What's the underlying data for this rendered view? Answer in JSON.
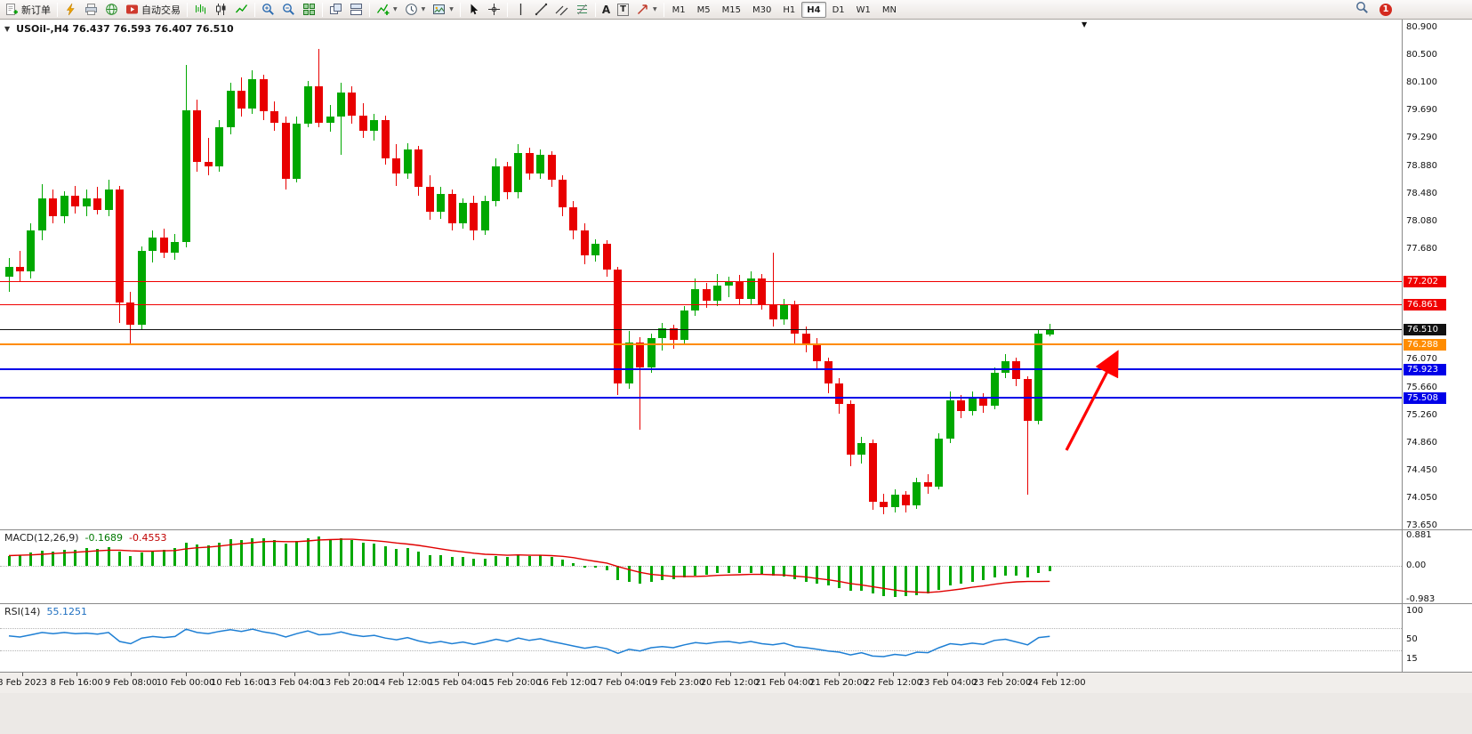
{
  "toolbar": {
    "new_order": "新订单",
    "autotrade": "自动交易",
    "timeframes": [
      "M1",
      "M5",
      "M15",
      "M30",
      "H1",
      "H4",
      "D1",
      "W1",
      "MN"
    ],
    "active_timeframe": "H4",
    "notification_count": "1"
  },
  "chart": {
    "title": "USOil-,H4 76.437 76.593 76.407 76.510"
  },
  "chart_data": {
    "type": "candlestick",
    "symbol": "USOil-",
    "period": "H4",
    "current_ohlc": {
      "open": 76.437,
      "high": 76.593,
      "low": 76.407,
      "close": 76.51
    },
    "price_axis_ticks": [
      "80.900",
      "80.500",
      "80.100",
      "79.690",
      "79.290",
      "78.880",
      "78.480",
      "78.080",
      "77.680",
      "76.070",
      "75.660",
      "75.260",
      "74.860",
      "74.450",
      "74.050",
      "73.650"
    ],
    "horizontal_lines": [
      {
        "price": 77.202,
        "label": "77.202",
        "color": "#F00000",
        "width": 1
      },
      {
        "price": 76.861,
        "label": "76.861",
        "color": "#F00000",
        "width": 1
      },
      {
        "price": 76.51,
        "label": "76.510",
        "color": "#111111",
        "width": 1
      },
      {
        "price": 76.288,
        "label": "76.288",
        "color": "#FF8C00",
        "width": 2
      },
      {
        "price": 75.923,
        "label": "75.923",
        "color": "#0000E8",
        "width": 2
      },
      {
        "price": 75.508,
        "label": "75.508",
        "color": "#0000E8",
        "width": 2
      }
    ],
    "time_labels": [
      "8 Feb 2023",
      "8 Feb 16:00",
      "9 Feb 08:00",
      "10 Feb 00:00",
      "10 Feb 16:00",
      "13 Feb 04:00",
      "13 Feb 20:00",
      "14 Feb 12:00",
      "15 Feb 04:00",
      "15 Feb 20:00",
      "16 Feb 12:00",
      "17 Feb 04:00",
      "19 Feb 23:00",
      "20 Feb 12:00",
      "21 Feb 04:00",
      "21 Feb 20:00",
      "22 Feb 12:00",
      "23 Feb 04:00",
      "23 Feb 20:00",
      "24 Feb 12:00"
    ],
    "candles": [
      [
        77.28,
        77.55,
        77.05,
        77.42
      ],
      [
        77.42,
        77.65,
        77.2,
        77.35
      ],
      [
        77.35,
        78.05,
        77.25,
        77.95
      ],
      [
        77.95,
        78.62,
        77.8,
        78.42
      ],
      [
        78.42,
        78.55,
        78.05,
        78.15
      ],
      [
        78.15,
        78.52,
        78.05,
        78.45
      ],
      [
        78.45,
        78.6,
        78.2,
        78.3
      ],
      [
        78.3,
        78.55,
        78.15,
        78.42
      ],
      [
        78.42,
        78.58,
        78.18,
        78.25
      ],
      [
        78.25,
        78.68,
        78.15,
        78.55
      ],
      [
        78.55,
        78.6,
        76.6,
        76.9
      ],
      [
        76.9,
        77.05,
        76.28,
        76.58
      ],
      [
        76.58,
        77.72,
        76.5,
        77.65
      ],
      [
        77.65,
        77.95,
        77.48,
        77.85
      ],
      [
        77.85,
        77.98,
        77.55,
        77.62
      ],
      [
        77.62,
        77.9,
        77.52,
        77.78
      ],
      [
        77.78,
        80.35,
        77.7,
        79.7
      ],
      [
        79.7,
        79.85,
        78.8,
        78.95
      ],
      [
        78.95,
        79.3,
        78.75,
        78.88
      ],
      [
        78.88,
        79.55,
        78.8,
        79.45
      ],
      [
        79.45,
        80.1,
        79.35,
        79.98
      ],
      [
        79.98,
        80.18,
        79.6,
        79.72
      ],
      [
        79.72,
        80.28,
        79.65,
        80.15
      ],
      [
        80.15,
        80.22,
        79.55,
        79.68
      ],
      [
        79.68,
        79.82,
        79.4,
        79.52
      ],
      [
        79.52,
        79.6,
        78.55,
        78.7
      ],
      [
        78.7,
        79.6,
        78.65,
        79.5
      ],
      [
        79.5,
        80.12,
        79.45,
        80.05
      ],
      [
        80.05,
        80.59,
        79.45,
        79.52
      ],
      [
        79.52,
        79.78,
        79.38,
        79.6
      ],
      [
        79.6,
        80.1,
        79.05,
        79.95
      ],
      [
        79.95,
        80.05,
        79.5,
        79.62
      ],
      [
        79.62,
        79.8,
        79.3,
        79.4
      ],
      [
        79.4,
        79.65,
        79.25,
        79.55
      ],
      [
        79.55,
        79.62,
        78.9,
        79.0
      ],
      [
        79.0,
        79.2,
        78.6,
        78.78
      ],
      [
        78.78,
        79.22,
        78.7,
        79.12
      ],
      [
        79.12,
        79.18,
        78.45,
        78.58
      ],
      [
        78.58,
        78.75,
        78.1,
        78.22
      ],
      [
        78.22,
        78.58,
        78.12,
        78.48
      ],
      [
        78.48,
        78.55,
        77.95,
        78.05
      ],
      [
        78.05,
        78.42,
        77.98,
        78.35
      ],
      [
        78.35,
        78.45,
        77.8,
        77.95
      ],
      [
        77.95,
        78.45,
        77.88,
        78.38
      ],
      [
        78.38,
        79.0,
        78.3,
        78.88
      ],
      [
        78.88,
        78.95,
        78.4,
        78.5
      ],
      [
        78.5,
        79.2,
        78.42,
        79.08
      ],
      [
        79.08,
        79.15,
        78.68,
        78.78
      ],
      [
        78.78,
        79.12,
        78.7,
        79.05
      ],
      [
        79.05,
        79.1,
        78.58,
        78.68
      ],
      [
        78.68,
        78.75,
        78.15,
        78.28
      ],
      [
        78.28,
        78.38,
        77.82,
        77.95
      ],
      [
        77.95,
        78.05,
        77.45,
        77.58
      ],
      [
        77.58,
        77.82,
        77.5,
        77.75
      ],
      [
        77.75,
        77.8,
        77.28,
        77.38
      ],
      [
        77.38,
        77.42,
        75.55,
        75.72
      ],
      [
        75.72,
        76.48,
        75.65,
        76.32
      ],
      [
        76.32,
        76.4,
        75.05,
        75.95
      ],
      [
        75.95,
        76.45,
        75.88,
        76.38
      ],
      [
        76.38,
        76.6,
        76.2,
        76.52
      ],
      [
        76.52,
        76.58,
        76.22,
        76.35
      ],
      [
        76.35,
        76.85,
        76.3,
        76.78
      ],
      [
        76.78,
        77.25,
        76.7,
        77.1
      ],
      [
        77.1,
        77.18,
        76.82,
        76.92
      ],
      [
        76.92,
        77.32,
        76.85,
        77.15
      ],
      [
        77.15,
        77.28,
        76.98,
        77.2
      ],
      [
        77.2,
        77.3,
        76.88,
        76.95
      ],
      [
        76.95,
        77.35,
        76.88,
        77.25
      ],
      [
        77.25,
        77.32,
        76.8,
        76.88
      ],
      [
        76.88,
        77.62,
        76.55,
        76.65
      ],
      [
        76.65,
        76.95,
        76.58,
        76.88
      ],
      [
        76.88,
        76.92,
        76.3,
        76.45
      ],
      [
        76.45,
        76.55,
        76.18,
        76.3
      ],
      [
        76.3,
        76.38,
        75.92,
        76.05
      ],
      [
        76.05,
        76.1,
        75.58,
        75.72
      ],
      [
        75.72,
        75.8,
        75.28,
        75.42
      ],
      [
        75.42,
        75.48,
        74.52,
        74.68
      ],
      [
        74.68,
        74.95,
        74.55,
        74.85
      ],
      [
        74.85,
        74.9,
        73.88,
        74.0
      ],
      [
        74.0,
        74.12,
        73.82,
        73.92
      ],
      [
        73.92,
        74.18,
        73.85,
        74.1
      ],
      [
        74.1,
        74.15,
        73.84,
        73.95
      ],
      [
        73.95,
        74.35,
        73.9,
        74.28
      ],
      [
        74.28,
        74.4,
        74.12,
        74.22
      ],
      [
        74.22,
        75.0,
        74.18,
        74.92
      ],
      [
        74.92,
        75.6,
        74.85,
        75.48
      ],
      [
        75.48,
        75.55,
        75.22,
        75.32
      ],
      [
        75.32,
        75.6,
        75.25,
        75.52
      ],
      [
        75.52,
        75.58,
        75.3,
        75.4
      ],
      [
        75.4,
        75.95,
        75.35,
        75.88
      ],
      [
        75.88,
        76.15,
        75.8,
        76.05
      ],
      [
        76.05,
        76.1,
        75.68,
        75.78
      ],
      [
        75.78,
        75.82,
        74.1,
        75.18
      ],
      [
        75.18,
        76.5,
        75.12,
        76.44
      ],
      [
        76.437,
        76.593,
        76.407,
        76.51
      ]
    ],
    "indicators": {
      "macd": {
        "name": "MACD(12,26,9)",
        "value_main": "-0.1689",
        "value_signal": "-0.4553",
        "axis_ticks": [
          "0.881",
          "0.00",
          "-0.983"
        ],
        "histogram": [
          0.28,
          0.32,
          0.38,
          0.45,
          0.42,
          0.48,
          0.46,
          0.52,
          0.5,
          0.55,
          0.42,
          0.3,
          0.38,
          0.45,
          0.48,
          0.52,
          0.68,
          0.62,
          0.6,
          0.68,
          0.78,
          0.75,
          0.82,
          0.8,
          0.76,
          0.65,
          0.72,
          0.82,
          0.85,
          0.78,
          0.82,
          0.76,
          0.68,
          0.66,
          0.58,
          0.5,
          0.52,
          0.42,
          0.32,
          0.32,
          0.25,
          0.26,
          0.2,
          0.22,
          0.3,
          0.26,
          0.34,
          0.3,
          0.32,
          0.26,
          0.18,
          0.08,
          -0.04,
          -0.06,
          -0.14,
          -0.42,
          -0.46,
          -0.52,
          -0.48,
          -0.42,
          -0.4,
          -0.34,
          -0.28,
          -0.26,
          -0.22,
          -0.2,
          -0.22,
          -0.2,
          -0.24,
          -0.3,
          -0.32,
          -0.4,
          -0.46,
          -0.52,
          -0.58,
          -0.64,
          -0.74,
          -0.72,
          -0.82,
          -0.88,
          -0.92,
          -0.9,
          -0.85,
          -0.8,
          -0.7,
          -0.58,
          -0.52,
          -0.46,
          -0.42,
          -0.34,
          -0.28,
          -0.28,
          -0.34,
          -0.22,
          -0.1689
        ],
        "signal": [
          0.3,
          0.31,
          0.32,
          0.34,
          0.36,
          0.38,
          0.4,
          0.42,
          0.44,
          0.46,
          0.46,
          0.44,
          0.43,
          0.43,
          0.44,
          0.45,
          0.5,
          0.53,
          0.55,
          0.58,
          0.62,
          0.65,
          0.68,
          0.71,
          0.72,
          0.71,
          0.71,
          0.73,
          0.76,
          0.77,
          0.78,
          0.78,
          0.76,
          0.74,
          0.71,
          0.67,
          0.64,
          0.6,
          0.55,
          0.5,
          0.45,
          0.41,
          0.37,
          0.34,
          0.33,
          0.31,
          0.32,
          0.31,
          0.31,
          0.3,
          0.28,
          0.24,
          0.18,
          0.13,
          0.08,
          -0.02,
          -0.11,
          -0.19,
          -0.25,
          -0.28,
          -0.31,
          -0.31,
          -0.31,
          -0.3,
          -0.28,
          -0.27,
          -0.26,
          -0.25,
          -0.25,
          -0.26,
          -0.27,
          -0.3,
          -0.33,
          -0.37,
          -0.41,
          -0.46,
          -0.52,
          -0.56,
          -0.61,
          -0.66,
          -0.71,
          -0.75,
          -0.77,
          -0.78,
          -0.76,
          -0.72,
          -0.68,
          -0.63,
          -0.59,
          -0.54,
          -0.5,
          -0.47,
          -0.46,
          -0.46,
          -0.4553
        ]
      },
      "rsi": {
        "name": "RSI(14)",
        "value": "55.1251",
        "axis_ticks": [
          "100",
          "50",
          "15"
        ],
        "levels": [
          70,
          30
        ],
        "values": [
          56,
          54,
          58,
          62,
          60,
          62,
          60,
          61,
          59,
          62,
          46,
          42,
          52,
          55,
          53,
          55,
          68,
          62,
          60,
          64,
          67,
          64,
          68,
          63,
          60,
          54,
          60,
          65,
          58,
          59,
          63,
          58,
          55,
          57,
          52,
          49,
          53,
          47,
          43,
          46,
          42,
          45,
          41,
          45,
          50,
          46,
          52,
          48,
          51,
          46,
          42,
          38,
          34,
          37,
          33,
          25,
          32,
          29,
          35,
          37,
          35,
          40,
          44,
          42,
          45,
          46,
          43,
          46,
          42,
          40,
          43,
          37,
          35,
          32,
          29,
          27,
          22,
          26,
          20,
          19,
          23,
          21,
          27,
          26,
          35,
          42,
          40,
          43,
          41,
          48,
          50,
          45,
          40,
          53,
          55.1251
        ]
      }
    },
    "annotation": {
      "type": "arrow",
      "color": "#FF0000",
      "direction": "up-right"
    }
  },
  "colors": {
    "up": "#00A800",
    "down": "#E80000",
    "macd_hist": "#00A800",
    "macd_signal": "#E00000",
    "rsi_line": "#1E7FD4",
    "arrow": "#FF0000"
  }
}
